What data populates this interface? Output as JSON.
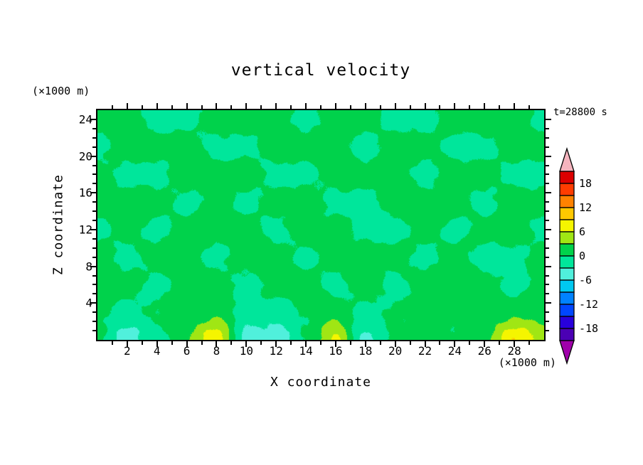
{
  "figure": {
    "background": "#ffffff",
    "frame_color": "#000000"
  },
  "chart_data": {
    "type": "heatmap",
    "title": "vertical velocity",
    "time_label": "t=28800 s",
    "xlabel": "X coordinate",
    "ylabel": "Z coordinate",
    "x_units_label": "(×1000 m)",
    "y_units_label": "(×1000 m)",
    "xlim": [
      0,
      30
    ],
    "ylim": [
      0,
      25
    ],
    "x_ticks": [
      2,
      4,
      6,
      8,
      10,
      12,
      14,
      16,
      18,
      20,
      22,
      24,
      26,
      28
    ],
    "x_minor_step": 1,
    "y_ticks": [
      4,
      8,
      12,
      16,
      20,
      24
    ],
    "y_minor_step": 1,
    "grid_on": false,
    "legend": "colorbar-right",
    "levels": {
      "min": -21,
      "max": 21,
      "step": 3
    },
    "colorbar_labels": [
      18,
      12,
      6,
      0,
      -6,
      -12,
      -18
    ],
    "palette": {
      "below": "#A000AA",
      "bands": [
        "#4B00B4",
        "#2800DC",
        "#0046FF",
        "#0082FF",
        "#00C8F0",
        "#50F0DC",
        "#00E69B",
        "#00D24B",
        "#A0E614",
        "#F5F500",
        "#FFC800",
        "#FF8200",
        "#FF3C00",
        "#DC0000"
      ],
      "above": "#F5B4BE"
    },
    "grid": {
      "x": [
        0,
        2,
        4,
        6,
        8,
        10,
        12,
        14,
        16,
        18,
        20,
        22,
        24,
        26,
        28,
        30
      ],
      "z": [
        0,
        3,
        6,
        9,
        12,
        15,
        18,
        21,
        24
      ],
      "values": [
        [
          0.5,
          -4.5,
          -1.5,
          3.0,
          8.0,
          -4.0,
          -5.0,
          0.0,
          6.5,
          -4.0,
          1.0,
          1.0,
          0.5,
          2.5,
          8.5,
          5.0
        ],
        [
          1.0,
          -1.4,
          0.5,
          1.6,
          2.5,
          -1.4,
          -2.0,
          0.5,
          2.0,
          -1.4,
          0.5,
          1.0,
          0.5,
          1.0,
          2.5,
          1.6
        ],
        [
          1.8,
          1.8,
          -1.3,
          1.8,
          1.8,
          -1.3,
          1.8,
          1.8,
          -1.3,
          1.8,
          -1.3,
          1.8,
          1.8,
          1.8,
          -1.3,
          1.8
        ],
        [
          1.8,
          -1.3,
          1.8,
          1.8,
          -1.3,
          1.8,
          1.8,
          -1.3,
          1.8,
          1.8,
          1.8,
          -1.3,
          1.8,
          -1.3,
          -1.3,
          1.8
        ],
        [
          -1.3,
          1.8,
          -1.3,
          1.8,
          1.8,
          1.8,
          -1.3,
          1.8,
          1.8,
          -1.3,
          -1.3,
          1.8,
          -1.3,
          1.8,
          1.8,
          -1.3
        ],
        [
          1.8,
          1.8,
          1.8,
          -1.3,
          1.8,
          -1.3,
          1.8,
          1.8,
          -1.3,
          -1.3,
          1.8,
          1.8,
          1.8,
          -1.3,
          1.8,
          1.8
        ],
        [
          1.8,
          -1.3,
          -1.3,
          1.8,
          1.8,
          1.8,
          -1.3,
          -1.3,
          1.8,
          1.8,
          1.8,
          -1.3,
          1.8,
          1.8,
          -1.3,
          -1.3
        ],
        [
          -1.3,
          1.8,
          1.8,
          1.8,
          -1.3,
          -1.3,
          1.8,
          1.8,
          1.8,
          -1.3,
          1.8,
          1.8,
          -1.3,
          -1.3,
          1.8,
          1.8
        ],
        [
          1.8,
          1.8,
          -1.3,
          -1.3,
          1.8,
          1.8,
          1.8,
          -1.3,
          1.8,
          1.8,
          -1.3,
          -1.3,
          1.8,
          1.8,
          1.8,
          -1.3
        ]
      ]
    }
  }
}
